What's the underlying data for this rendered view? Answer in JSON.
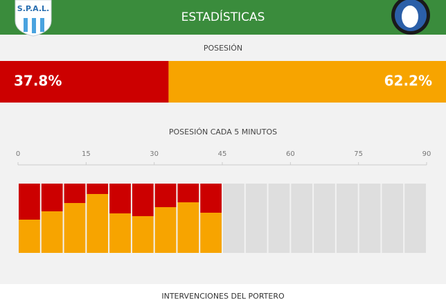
{
  "header": {
    "title": "ESTADÍSTICAS",
    "home_logo": "S.P.A.L."
  },
  "possession": {
    "title": "POSESIÓN",
    "values": [
      37.8,
      62.2
    ],
    "value_labels": [
      "37.8%",
      "62.2%"
    ],
    "colors": [
      "#cc0000",
      "#f7a400"
    ]
  },
  "chart_data": {
    "type": "bar",
    "stacked": true,
    "title": "POSESIÓN CADA 5 MINUTOS",
    "x": [
      0,
      5,
      10,
      15,
      20,
      25,
      30,
      35,
      40
    ],
    "xlim": [
      0,
      90
    ],
    "xticks": [
      0,
      15,
      30,
      45,
      60,
      75,
      90
    ],
    "ylim": [
      0,
      100
    ],
    "series": [
      {
        "color": "#f7a400",
        "values": [
          48,
          60,
          72,
          85,
          57,
          53,
          66,
          73,
          58
        ]
      },
      {
        "color": "#cc0000",
        "values": [
          52,
          40,
          28,
          15,
          43,
          47,
          34,
          27,
          42
        ]
      }
    ]
  },
  "footer": {
    "title": "INTERVENCIONES DEL PORTERO"
  }
}
